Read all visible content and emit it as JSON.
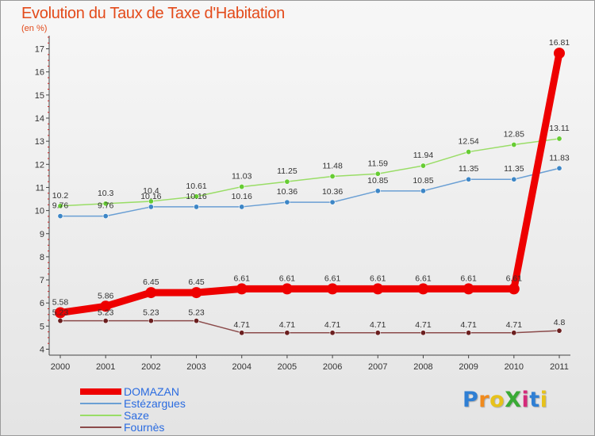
{
  "title": "Evolution du Taux de Taxe d'Habitation",
  "unit_label": "(en %)",
  "logo": {
    "text": "ProXiti"
  },
  "chart_data": {
    "type": "line",
    "title": "Evolution du Taux de Taxe d'Habitation",
    "ylabel": "(en %)",
    "xlabel": "",
    "x": [
      "2000",
      "2001",
      "2002",
      "2003",
      "2004",
      "2005",
      "2006",
      "2007",
      "2008",
      "2009",
      "2010",
      "2011"
    ],
    "ylim": [
      4,
      17.5
    ],
    "yticks": [
      4,
      5,
      6,
      7,
      8,
      9,
      10,
      11,
      12,
      13,
      14,
      15,
      16,
      17
    ],
    "grid": false,
    "legend_position": "bottom-left",
    "series": [
      {
        "name": "DOMAZAN",
        "color": "#ee0000",
        "values": [
          5.58,
          5.86,
          6.45,
          6.45,
          6.61,
          6.61,
          6.61,
          6.61,
          6.61,
          6.61,
          6.61,
          16.81
        ],
        "labels": [
          "5.58",
          "5.86",
          "6.45",
          "6.45",
          "6.61",
          "6.61",
          "6.61",
          "6.61",
          "6.61",
          "6.61",
          "6.61",
          "16.81"
        ]
      },
      {
        "name": "Estézargues",
        "color": "#6a9fd4",
        "values": [
          9.76,
          9.76,
          10.16,
          10.16,
          10.16,
          10.36,
          10.36,
          10.85,
          10.85,
          11.35,
          11.35,
          11.83
        ],
        "labels": [
          "9.76",
          "9.76",
          "10.16",
          "10.16",
          "10.16",
          "10.36",
          "10.36",
          "10.85",
          "10.85",
          "11.35",
          "11.35",
          "11.83"
        ]
      },
      {
        "name": "Saze",
        "color": "#99dd66",
        "values": [
          10.2,
          10.3,
          10.4,
          10.61,
          11.03,
          11.25,
          11.48,
          11.59,
          11.94,
          12.54,
          12.85,
          13.11
        ],
        "labels": [
          "10.2",
          "10.3",
          "10.4",
          "10.61",
          "11.03",
          "11.25",
          "11.48",
          "11.59",
          "11.94",
          "12.54",
          "12.85",
          "13.11"
        ]
      },
      {
        "name": "Fournès",
        "color": "#8b4a4a",
        "values": [
          5.23,
          5.23,
          5.23,
          5.23,
          4.71,
          4.71,
          4.71,
          4.71,
          4.71,
          4.71,
          4.71,
          4.8
        ],
        "labels": [
          "5.23",
          "5.23",
          "5.23",
          "5.23",
          "4.71",
          "4.71",
          "4.71",
          "4.71",
          "4.71",
          "4.71",
          "4.71",
          "4.8"
        ]
      }
    ]
  }
}
